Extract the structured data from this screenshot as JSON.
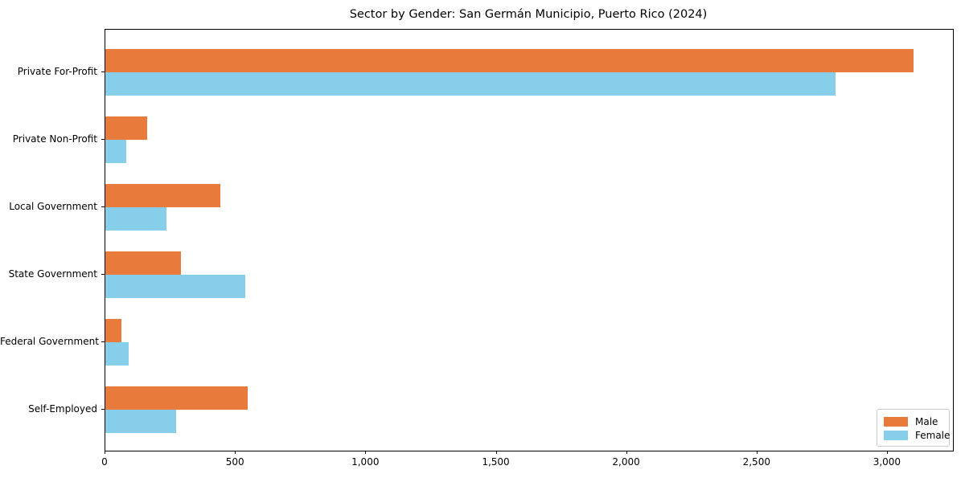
{
  "chart_data": {
    "type": "bar",
    "orientation": "horizontal",
    "title": "Sector by Gender: San Germán Municipio, Puerto Rico (2024)",
    "categories": [
      "Private For-Profit",
      "Private Non-Profit",
      "Local Government",
      "State Government",
      "Federal Government",
      "Self-Employed"
    ],
    "series": [
      {
        "name": "Male",
        "color": "#e87a3c",
        "values": [
          3100,
          160,
          440,
          290,
          60,
          545
        ]
      },
      {
        "name": "Female",
        "color": "#87ceeb",
        "values": [
          2800,
          80,
          235,
          535,
          90,
          270
        ]
      }
    ],
    "xlabel": "",
    "ylabel": "",
    "xlim": [
      0,
      3250
    ],
    "xticks": {
      "values": [
        0,
        500,
        1000,
        1500,
        2000,
        2500,
        3000
      ],
      "labels": [
        "0",
        "500",
        "1,000",
        "1,500",
        "2,000",
        "2,500",
        "3,000"
      ]
    },
    "grid": false,
    "legend": {
      "position": "lower right"
    }
  }
}
